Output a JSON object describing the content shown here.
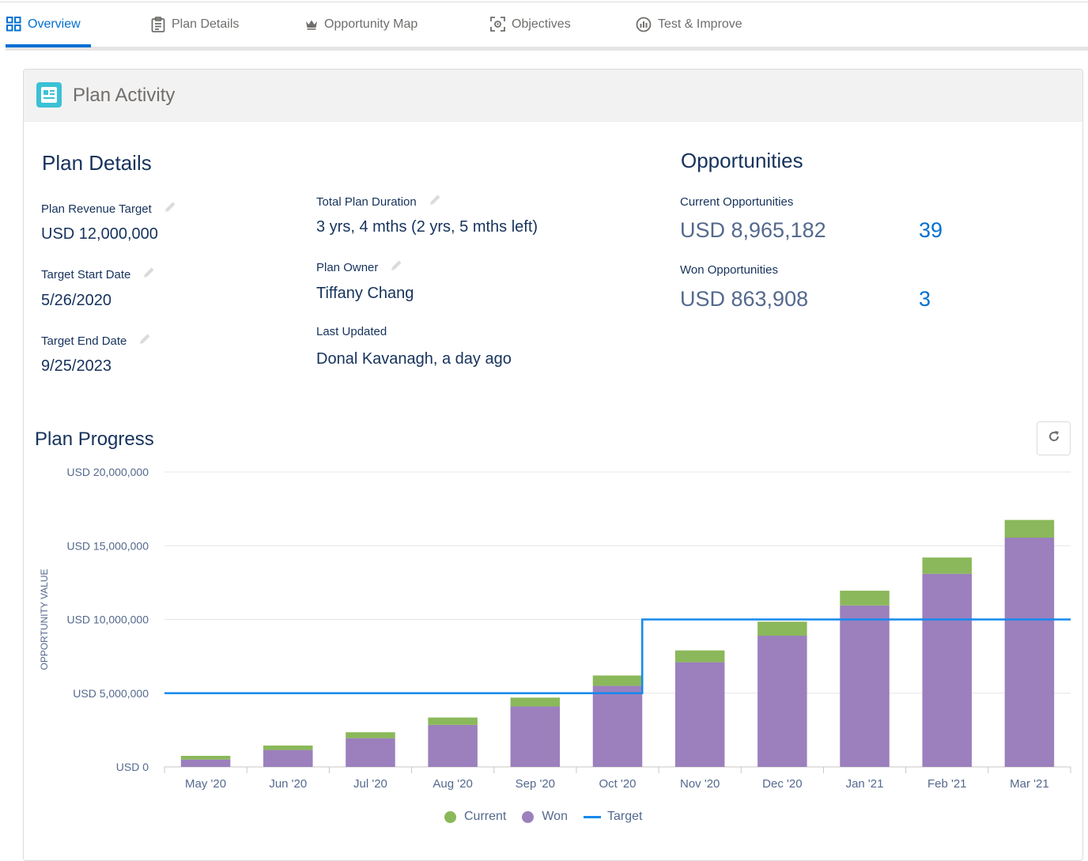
{
  "tabs": [
    {
      "label": "Overview",
      "icon": "grid-icon",
      "active": true
    },
    {
      "label": "Plan Details",
      "icon": "clipboard-icon",
      "active": false
    },
    {
      "label": "Opportunity Map",
      "icon": "crown-icon",
      "active": false
    },
    {
      "label": "Objectives",
      "icon": "target-icon",
      "active": false
    },
    {
      "label": "Test & Improve",
      "icon": "chart-circle-icon",
      "active": false
    }
  ],
  "card": {
    "title": "Plan Activity",
    "icon": "news-icon"
  },
  "plan_details": {
    "heading": "Plan Details",
    "revenue_target_label": "Plan Revenue Target",
    "revenue_target_value": "USD 12,000,000",
    "start_date_label": "Target Start Date",
    "start_date_value": "5/26/2020",
    "end_date_label": "Target End Date",
    "end_date_value": "9/25/2023",
    "duration_label": "Total Plan Duration",
    "duration_value": "3 yrs, 4 mths (2 yrs, 5 mths left)",
    "owner_label": "Plan Owner",
    "owner_value": "Tiffany Chang",
    "updated_label": "Last Updated",
    "updated_value": "Donal Kavanagh, a day ago"
  },
  "opportunities": {
    "heading": "Opportunities",
    "current_label": "Current Opportunities",
    "current_value": "USD 8,965,182",
    "current_count": "39",
    "won_label": "Won Opportunities",
    "won_value": "USD 863,908",
    "won_count": "3"
  },
  "plan_progress": {
    "heading": "Plan Progress",
    "refresh_icon": "refresh-icon"
  },
  "colors": {
    "current": "#8bb85a",
    "won": "#9b80bd",
    "target": "#1589ee",
    "accent": "#0070d2"
  },
  "chart_data": {
    "type": "bar",
    "stacked": true,
    "ylabel": "OPPORTUNITY VALUE",
    "ylim": [
      0,
      20000000
    ],
    "yticks": [
      "USD 0",
      "USD 5,000,000",
      "USD 10,000,000",
      "USD 15,000,000",
      "USD 20,000,000"
    ],
    "ytick_values": [
      0,
      5000000,
      10000000,
      15000000,
      20000000
    ],
    "categories": [
      "May '20",
      "Jun '20",
      "Jul '20",
      "Aug '20",
      "Sep '20",
      "Oct '20",
      "Nov '20",
      "Dec '20",
      "Jan '21",
      "Feb '21",
      "Mar '21"
    ],
    "series": [
      {
        "name": "Won",
        "values": [
          500000,
          1150000,
          1950000,
          2850000,
          4100000,
          5500000,
          7100000,
          8900000,
          10950000,
          13100000,
          15550000
        ]
      },
      {
        "name": "Current",
        "values": [
          250000,
          300000,
          400000,
          500000,
          600000,
          700000,
          800000,
          950000,
          1000000,
          1100000,
          1200000
        ]
      }
    ],
    "target": {
      "name": "Target",
      "values": [
        5000000,
        5000000,
        5000000,
        5000000,
        5000000,
        5000000,
        10000000,
        10000000,
        10000000,
        10000000,
        10000000
      ]
    },
    "legend": [
      "Current",
      "Won",
      "Target"
    ],
    "legend_position": "bottom"
  }
}
